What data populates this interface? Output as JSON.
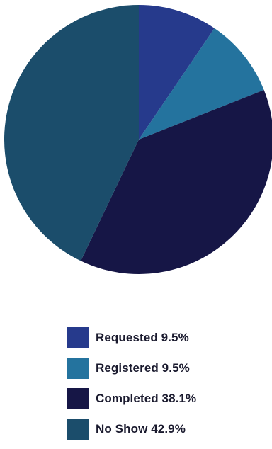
{
  "chart_data": {
    "type": "pie",
    "start_angle_deg": 0,
    "direction": "clockwise",
    "legend_position": "bottom",
    "slices": [
      {
        "label": "Requested",
        "value": 9.5,
        "value_label": "9.5%",
        "color": "#263a8c"
      },
      {
        "label": "Registered",
        "value": 9.5,
        "value_label": "9.5%",
        "color": "#24739e"
      },
      {
        "label": "Completed",
        "value": 38.1,
        "value_label": "38.1%",
        "color": "#161646"
      },
      {
        "label": "No Show",
        "value": 42.9,
        "value_label": "42.9%",
        "color": "#1b4d6b"
      }
    ]
  },
  "legend": {
    "items": [
      {
        "text": "Requested 9.5%",
        "color": "#263a8c"
      },
      {
        "text": "Registered 9.5%",
        "color": "#24739e"
      },
      {
        "text": "Completed 38.1%",
        "color": "#161646"
      },
      {
        "text": "No Show 42.9%",
        "color": "#1b4d6b"
      }
    ]
  }
}
